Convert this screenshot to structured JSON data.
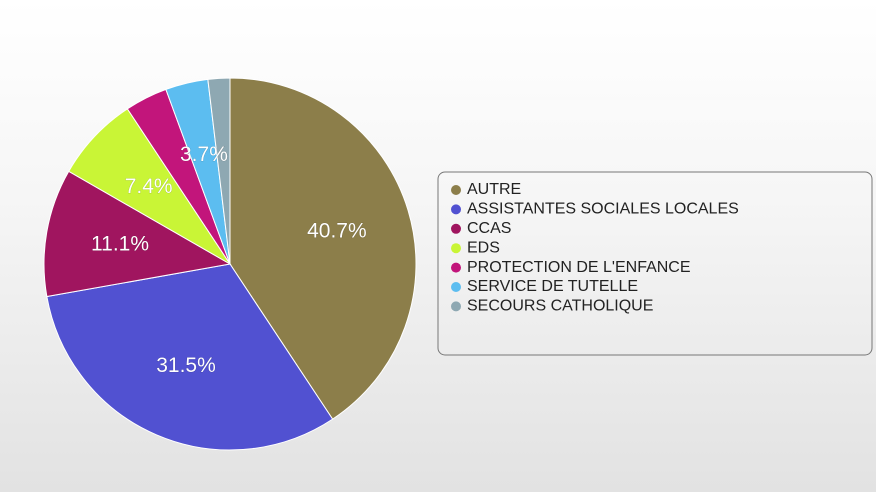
{
  "chart_data": {
    "type": "pie",
    "categories": [
      "AUTRE",
      "ASSISTANTES SOCIALES LOCALES",
      "CCAS",
      "EDS",
      "PROTECTION DE L'ENFANCE",
      "SERVICE DE TUTELLE",
      "SECOURS CATHOLIQUE"
    ],
    "values": [
      40.7,
      31.5,
      11.1,
      7.4,
      3.7,
      3.7,
      1.9
    ],
    "value_labels": [
      "40.7%",
      "31.5%",
      "11.1%",
      "7.4%",
      null,
      "3.7%",
      null
    ],
    "colors": [
      "#8c7e4a",
      "#5151d1",
      "#a0155f",
      "#c9f536",
      "#c2157b",
      "#5cbdf0",
      "#8ea8b2"
    ],
    "legend": "right"
  }
}
